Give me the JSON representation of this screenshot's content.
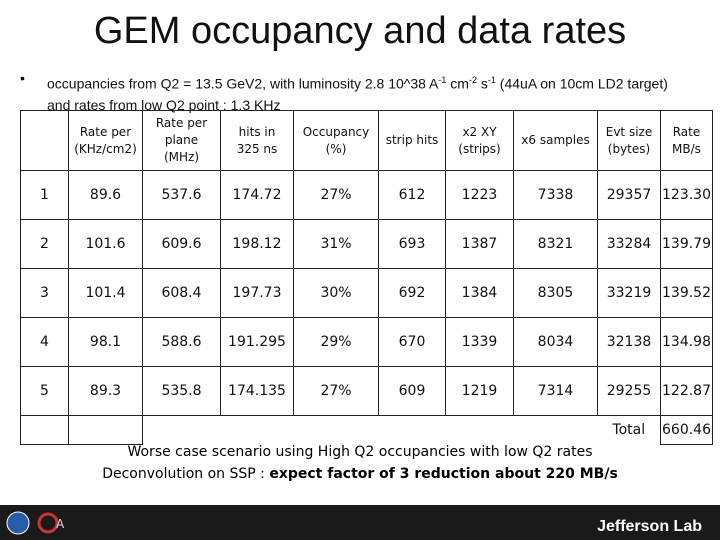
{
  "header": {
    "title": "GEM occupancy and data rates"
  },
  "bullet": {
    "parts": [
      "occupancies from Q2 = 13.5 GeV2, with luminosity 2.8 10^38 A",
      "-1",
      " cm",
      "-2",
      " s",
      "-1",
      " (44uA on 10cm LD2 target) and rates from low Q2 point : 1.3 KHz"
    ]
  },
  "table": {
    "columns": [
      "",
      "Rate per\n(KHz/cm2)",
      "Rate per\nplane\n(MHz)",
      "hits in\n325 ns",
      "Occupancy\n(%)",
      "strip hits",
      "x2 XY\n(strips)",
      "x6 samples",
      "Evt size\n(bytes)",
      "Rate\nMB/s"
    ],
    "rows": [
      [
        "1",
        "89.6",
        "537.6",
        "174.72",
        "27%",
        "612",
        "1223",
        "7338",
        "29357",
        "123.30"
      ],
      [
        "2",
        "101.6",
        "609.6",
        "198.12",
        "31%",
        "693",
        "1387",
        "8321",
        "33284",
        "139.79"
      ],
      [
        "3",
        "101.4",
        "608.4",
        "197.73",
        "30%",
        "692",
        "1384",
        "8305",
        "33219",
        "139.52"
      ],
      [
        "4",
        "98.1",
        "588.6",
        "191.295",
        "29%",
        "670",
        "1339",
        "8034",
        "32138",
        "134.98"
      ],
      [
        "5",
        "89.3",
        "535.8",
        "174.135",
        "27%",
        "609",
        "1219",
        "7314",
        "29255",
        "122.87"
      ]
    ],
    "total_label": "Total",
    "total_value": "660.46"
  },
  "notes": {
    "line1": "Worse case scenario using High Q2 occupancies with low Q2 rates",
    "line2_plain": "Deconvolution on SSP : ",
    "line2_bold": "expect factor of 3 reduction about 220 MB/s"
  },
  "footer": {
    "lab": "Jefferson Lab"
  }
}
